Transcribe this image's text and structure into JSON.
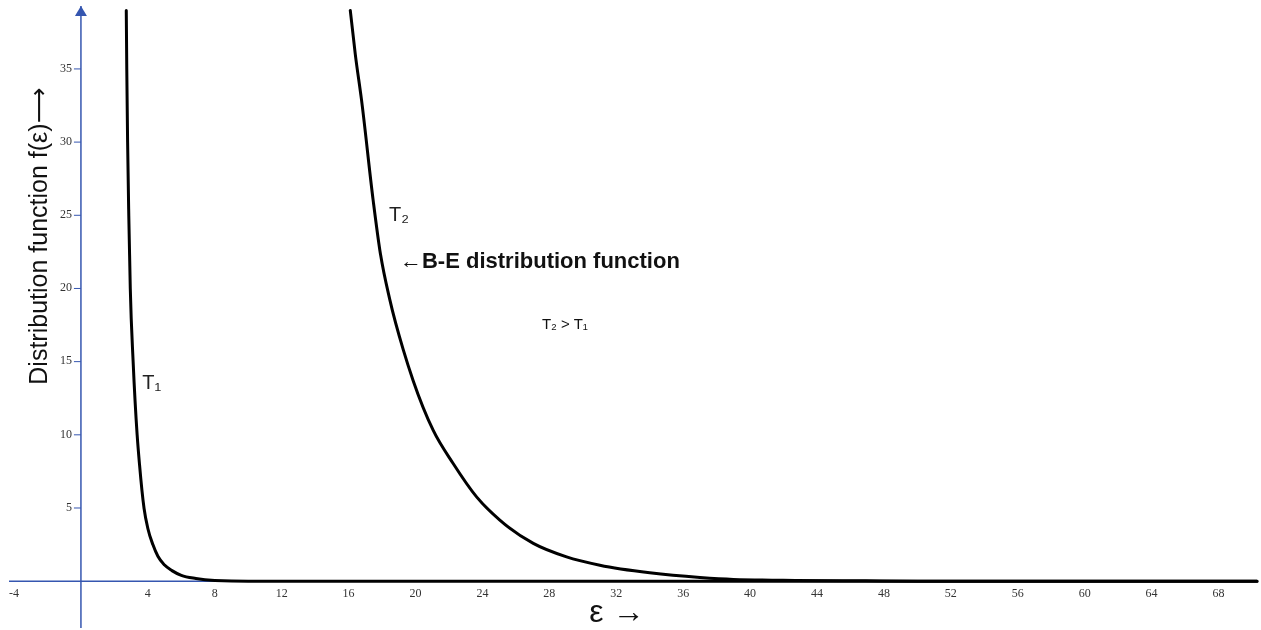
{
  "chart_data": {
    "type": "line",
    "xlabel": "ε →",
    "ylabel": "Distribution function f(ε)⟶",
    "xlim": [
      -4.3,
      70.3
    ],
    "ylim": [
      -3.2,
      39.3
    ],
    "xticks": [
      -4,
      4,
      8,
      12,
      16,
      20,
      24,
      28,
      32,
      36,
      40,
      44,
      48,
      52,
      56,
      60,
      64,
      68
    ],
    "yticks": [
      5,
      10,
      15,
      20,
      25,
      30,
      35
    ],
    "marker": "none",
    "series": [
      {
        "name": "T₁",
        "color": "#000000",
        "x": [
          2.71,
          2.74,
          2.79,
          2.86,
          2.95,
          3.12,
          3.36,
          3.5,
          3.77,
          4.0,
          4.3,
          4.6,
          5.0,
          5.44,
          6.0,
          6.87,
          8,
          10,
          70.3
        ],
        "values": [
          39,
          35,
          30,
          25,
          20,
          15,
          10,
          8,
          5,
          3.6,
          2.5,
          1.7,
          1.1,
          0.72,
          0.4,
          0.18,
          0.05,
          0,
          0
        ]
      },
      {
        "name": "T₂",
        "color": "#000000",
        "x": [
          16.1,
          16.4,
          16.77,
          17.47,
          17.87,
          18.47,
          19.27,
          19.86,
          21.06,
          22.25,
          23.65,
          25.04,
          27.04,
          29.03,
          31.02,
          34,
          37,
          39,
          42.7,
          46.9,
          50,
          70.3
        ],
        "values": [
          39,
          36,
          32.9,
          26,
          22.6,
          19.2,
          15.8,
          13.7,
          10.3,
          8.04,
          5.76,
          4.17,
          2.58,
          1.66,
          1.09,
          0.57,
          0.25,
          0.12,
          0.05,
          0.02,
          0,
          0
        ]
      }
    ],
    "annotations": [
      "←B-E distribution function",
      "T₂ > T₁"
    ]
  }
}
